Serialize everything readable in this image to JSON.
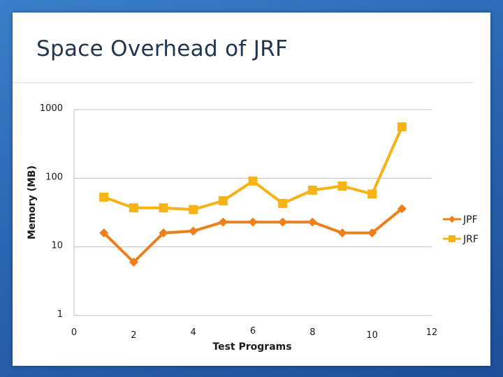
{
  "slide": {
    "title": "Space Overhead of JRF"
  },
  "chart_data": {
    "type": "line",
    "title": "",
    "xlabel": "Test Programs",
    "ylabel": "Memory (MB)",
    "xlim": [
      0,
      12
    ],
    "ylim": [
      1,
      1000
    ],
    "yscale": "log",
    "x_ticks": [
      "0",
      "2",
      "4",
      "6",
      "8",
      "10",
      "12"
    ],
    "y_ticks": [
      "1000",
      "100",
      "10",
      "1"
    ],
    "grid": "horizontal",
    "legend_position": "right",
    "x": [
      1,
      2,
      3,
      4,
      5,
      6,
      7,
      8,
      9,
      10,
      11
    ],
    "series": [
      {
        "name": "JPF",
        "color": "#ef7f1a",
        "marker": "diamond",
        "values": [
          16,
          6,
          16,
          17,
          23,
          23,
          23,
          23,
          16,
          16,
          36
        ]
      },
      {
        "name": "JRF",
        "color": "#f5b316",
        "marker": "square",
        "values": [
          53,
          37,
          37,
          35,
          47,
          91,
          43,
          67,
          77,
          59,
          560
        ]
      }
    ]
  }
}
